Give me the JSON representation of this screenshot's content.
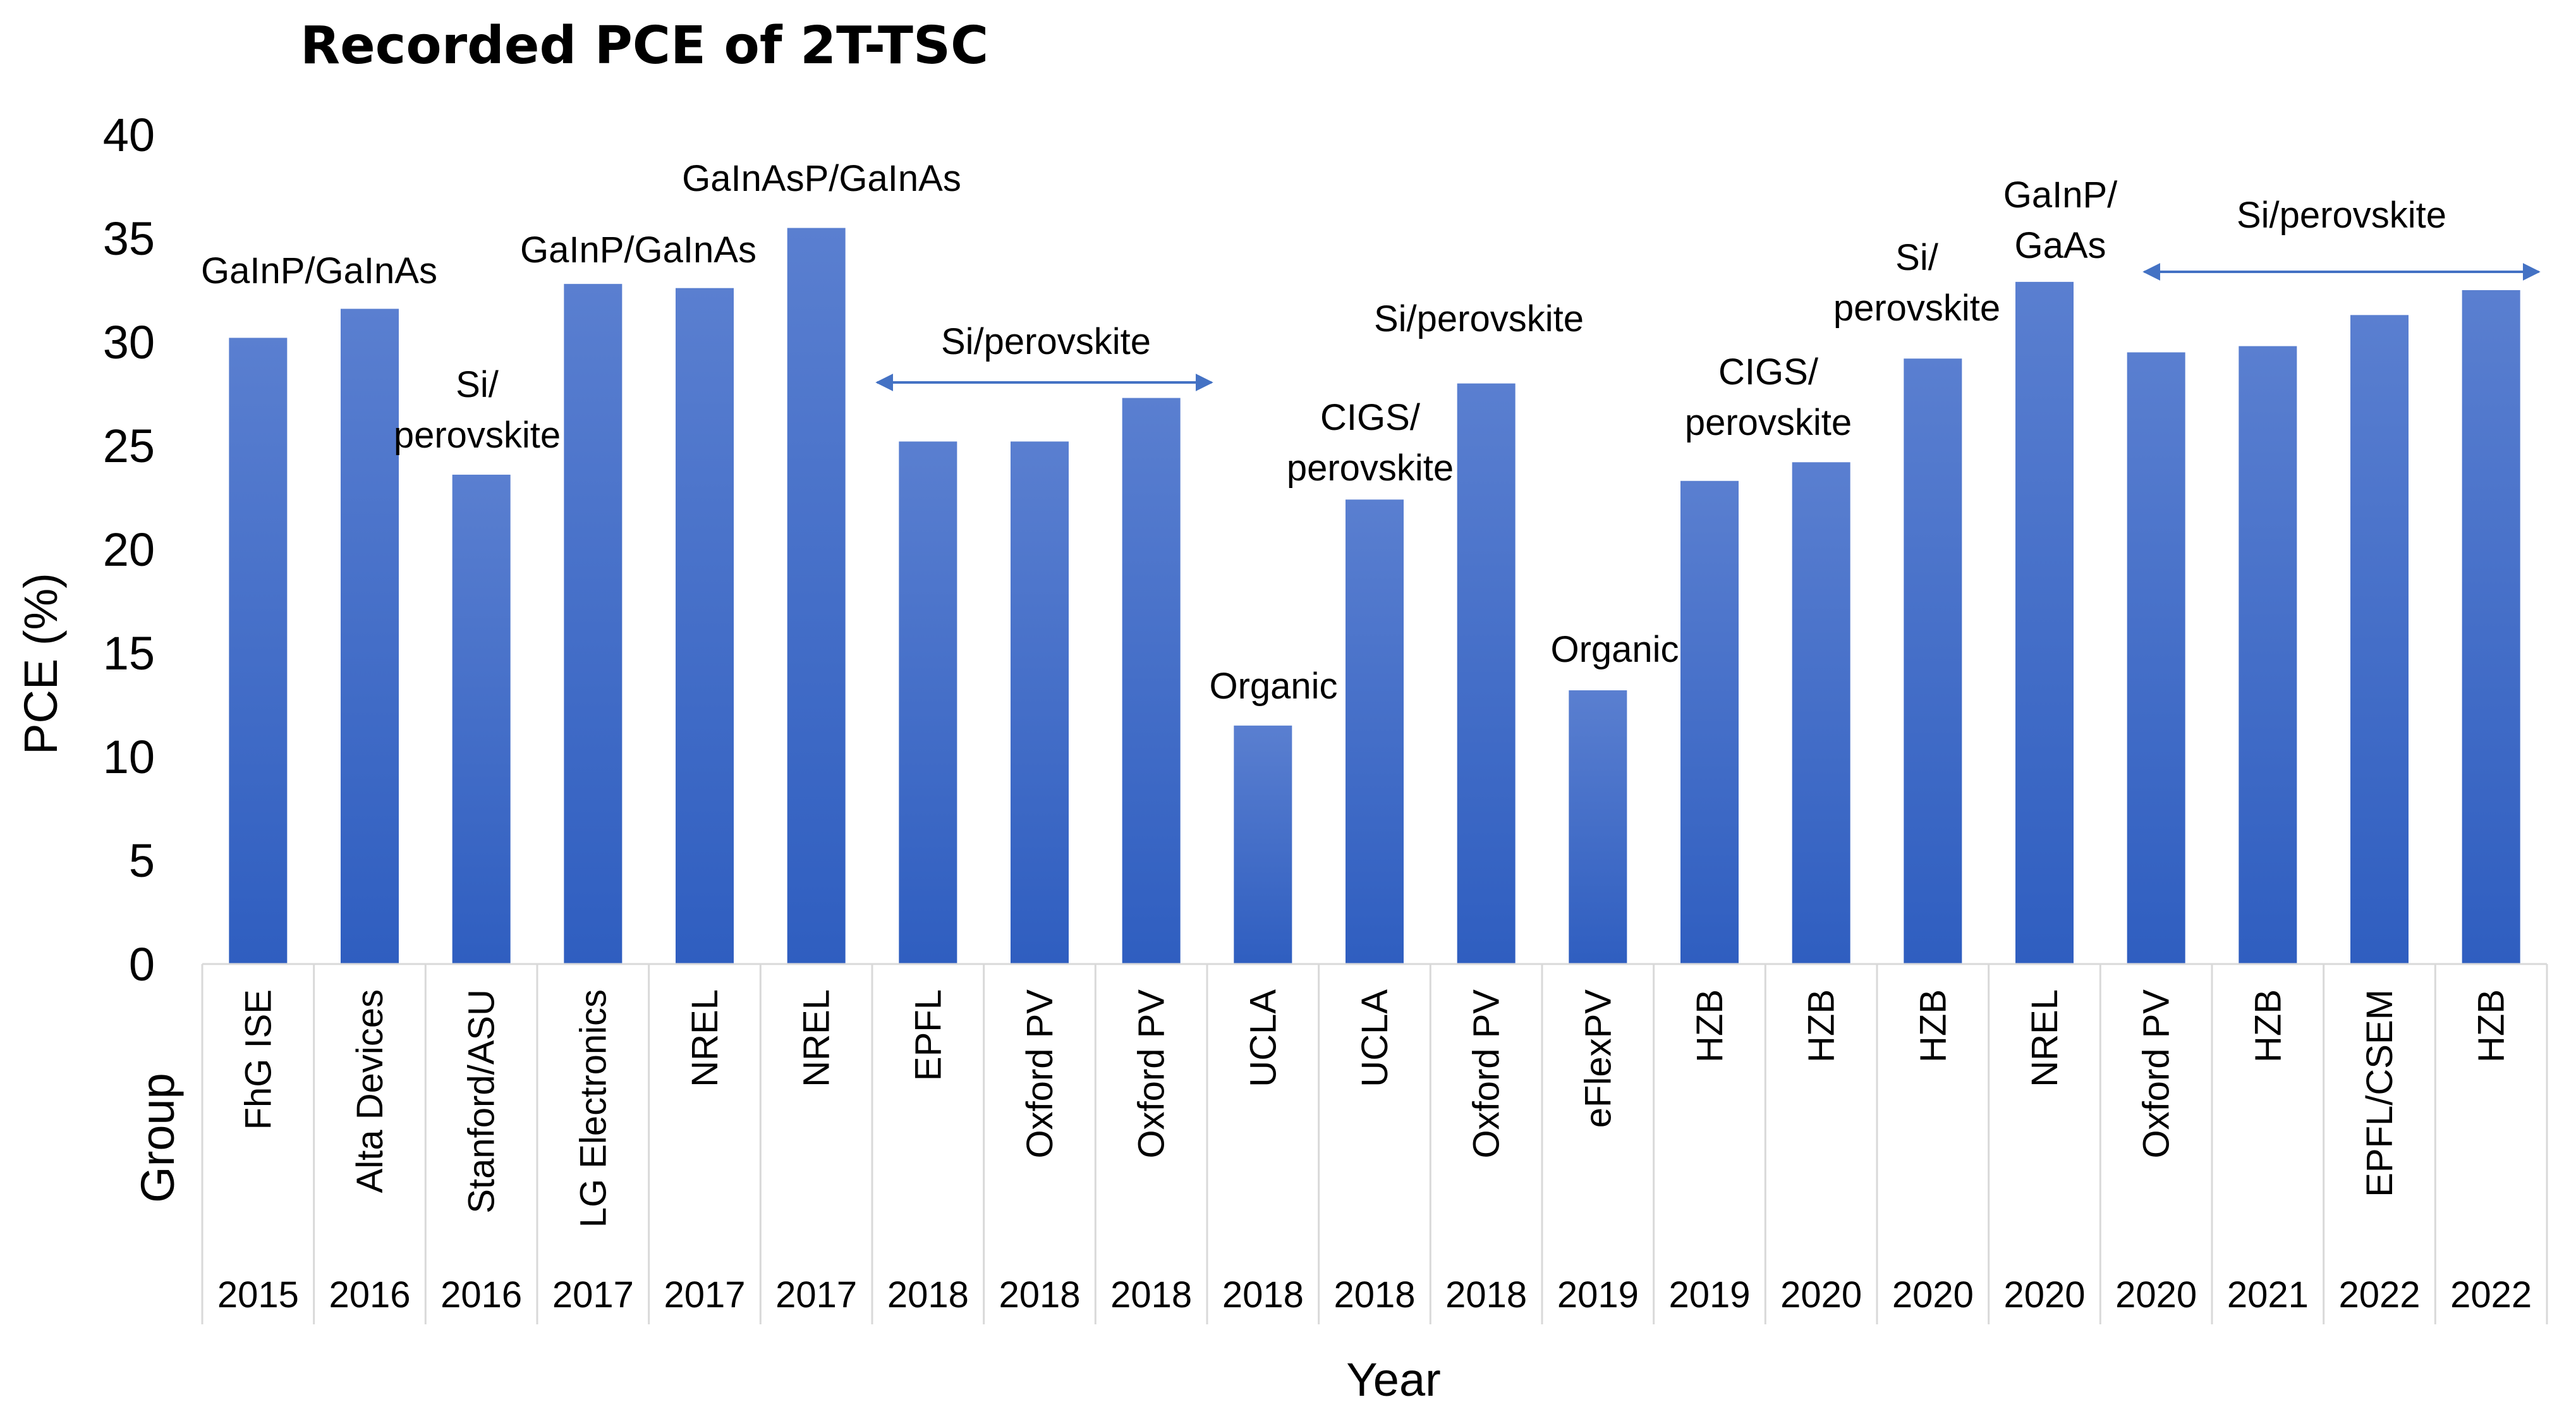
{
  "chart_data": {
    "type": "bar",
    "title": "Recorded PCE of 2T-TSC",
    "ylabel": "PCE (%)",
    "xlabel": "Year",
    "group_axis_label": "Group",
    "ylim": [
      0,
      40
    ],
    "yticks": [
      0,
      5,
      10,
      15,
      20,
      25,
      30,
      35,
      40
    ],
    "groups": [
      "FhG ISE",
      "Alta Devices",
      "Stanford/ASU",
      "LG Electronics",
      "NREL",
      "NREL",
      "EPFL",
      "Oxford PV",
      "Oxford PV",
      "UCLA",
      "UCLA",
      "Oxford PV",
      "eFlexPV",
      "HZB",
      "HZB",
      "HZB",
      "NREL",
      "Oxford PV",
      "HZB",
      "EPFL/CSEM",
      "HZB"
    ],
    "years": [
      "2015",
      "2016",
      "2016",
      "2017",
      "2017",
      "2017",
      "2018",
      "2018",
      "2018",
      "2018",
      "2018",
      "2018",
      "2019",
      "2019",
      "2020",
      "2020",
      "2020",
      "2020",
      "2021",
      "2022",
      "2022"
    ],
    "values": [
      30.2,
      31.6,
      23.6,
      32.8,
      32.6,
      35.5,
      25.2,
      25.2,
      27.3,
      11.5,
      22.4,
      28.0,
      13.2,
      23.3,
      24.2,
      29.2,
      32.9,
      29.5,
      29.8,
      31.3,
      32.5
    ],
    "annotations": [
      {
        "lines": [
          "GaInP/GaInAs"
        ],
        "position": "above bars 1-2"
      },
      {
        "lines": [
          "Si/",
          "perovskite"
        ],
        "position": "above bar 3"
      },
      {
        "lines": [
          "GaInP/GaInAs"
        ],
        "position": "above bars 4-5"
      },
      {
        "lines": [
          "GaInAsP/GaInAs"
        ],
        "position": "above bar 6"
      },
      {
        "lines": [
          "Si/perovskite"
        ],
        "position": "above bars 7-9 with double arrow"
      },
      {
        "lines": [
          "Organic"
        ],
        "position": "above bar 10"
      },
      {
        "lines": [
          "CIGS/",
          "perovskite"
        ],
        "position": "above bar 11"
      },
      {
        "lines": [
          "Si/perovskite"
        ],
        "position": "above bar 12"
      },
      {
        "lines": [
          "Organic"
        ],
        "position": "above bar 13"
      },
      {
        "lines": [
          "CIGS/",
          "perovskite"
        ],
        "position": "above bars 14-15"
      },
      {
        "lines": [
          "Si/",
          "perovskite"
        ],
        "position": "above bar 16"
      },
      {
        "lines": [
          "GaInP/",
          "GaAs"
        ],
        "position": "above bar 17"
      },
      {
        "lines": [
          "Si/perovskite"
        ],
        "position": "above bars 18-21 with double arrow"
      }
    ],
    "colors": {
      "bar_top": "#5a7fd0",
      "bar_bottom": "#2f5ec0",
      "arrow": "#4472c4",
      "rule": "#d9d9d9"
    }
  }
}
